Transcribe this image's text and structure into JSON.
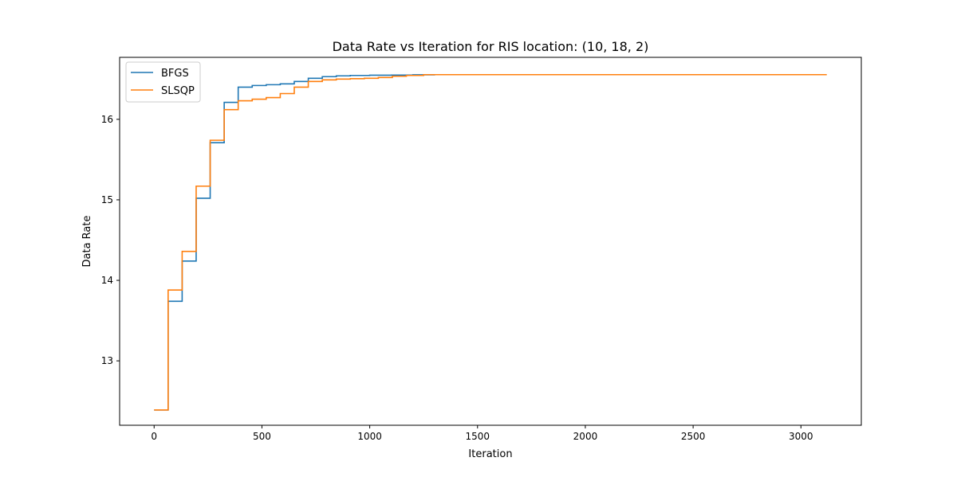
{
  "chart_data": {
    "type": "line",
    "title": "Data Rate vs Iteration for RIS location: (10, 18, 2)",
    "xlabel": "Iteration",
    "ylabel": "Data Rate",
    "xlim": [
      -160,
      3280
    ],
    "ylim": [
      12.2,
      16.77
    ],
    "xticks": [
      0,
      500,
      1000,
      1500,
      2000,
      2500,
      3000
    ],
    "yticks": [
      13,
      14,
      15,
      16
    ],
    "grid": false,
    "legend": "top-left",
    "line_style": "step",
    "series": [
      {
        "name": "BFGS",
        "color": "#1f77b4",
        "x": [
          0,
          65,
          130,
          195,
          260,
          325,
          390,
          455,
          520,
          585,
          650,
          715,
          780,
          845,
          910,
          1000,
          1100,
          1200,
          1300,
          1650
        ],
        "y": [
          12.39,
          13.74,
          14.24,
          15.02,
          15.71,
          16.21,
          16.4,
          16.42,
          16.43,
          16.44,
          16.47,
          16.51,
          16.53,
          16.54,
          16.545,
          16.548,
          16.55,
          16.553,
          16.555,
          16.555
        ]
      },
      {
        "name": "SLSQP",
        "color": "#ff7f0e",
        "x": [
          0,
          65,
          130,
          195,
          260,
          325,
          390,
          455,
          520,
          585,
          650,
          715,
          780,
          845,
          910,
          975,
          1040,
          1105,
          1170,
          1250,
          3120
        ],
        "y": [
          12.39,
          13.88,
          14.36,
          15.17,
          15.74,
          16.12,
          16.23,
          16.25,
          16.27,
          16.32,
          16.4,
          16.47,
          16.49,
          16.5,
          16.505,
          16.51,
          16.52,
          16.535,
          16.545,
          16.555,
          16.555
        ]
      }
    ]
  }
}
